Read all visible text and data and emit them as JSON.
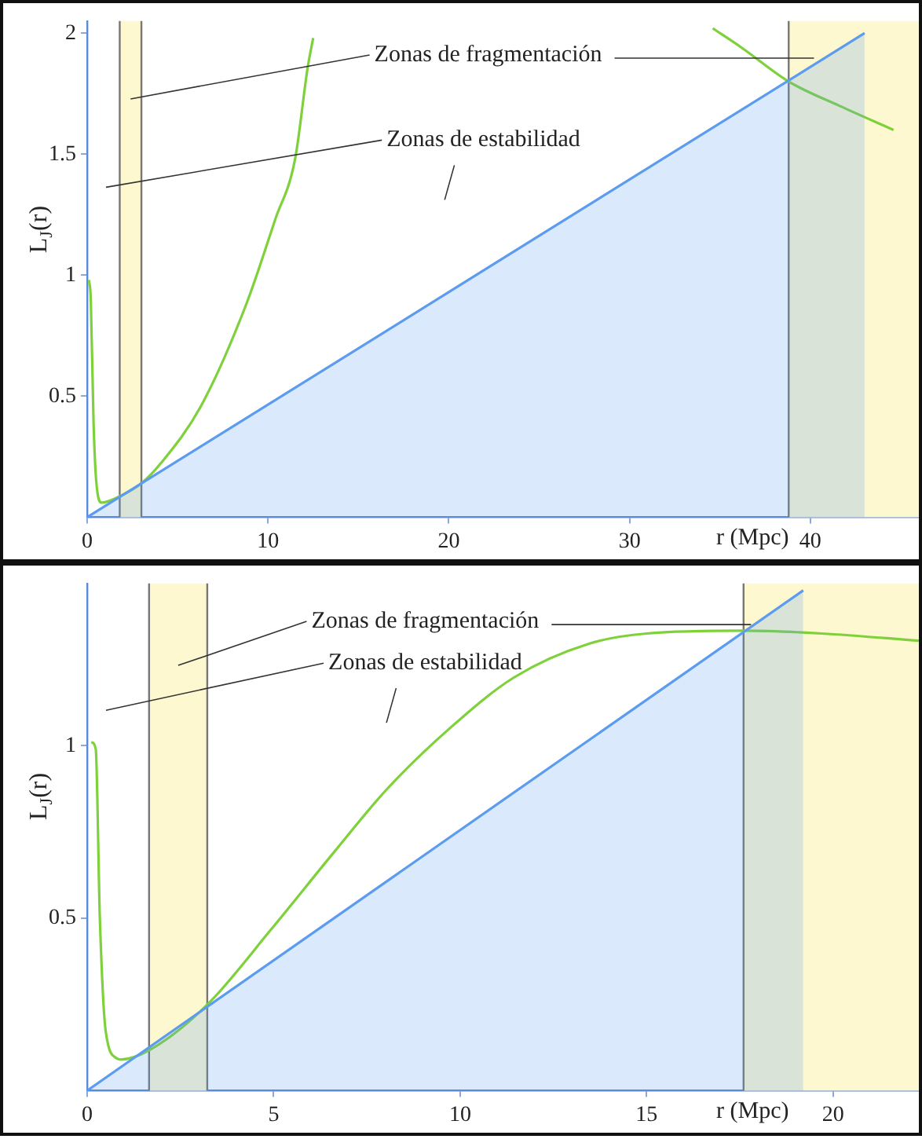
{
  "chart_data": [
    {
      "type": "line",
      "xlabel": "r (Mpc)",
      "ylabel": "L$_{J}$(r)",
      "xlim": [
        0,
        46
      ],
      "ylim": [
        0,
        2.05
      ],
      "xticks": [
        0,
        10,
        20,
        30,
        40
      ],
      "yticks": [
        0.5,
        1,
        1.5,
        2
      ],
      "grid": false,
      "legend": false,
      "series": [
        {
          "type": "area",
          "color": "#5b9bf0",
          "x": [
            0,
            43
          ],
          "values": [
            0,
            2.0
          ]
        },
        {
          "type": "line",
          "color": "#7fd13b",
          "x": [
            0.1,
            0.2,
            0.35,
            0.5,
            0.8,
            1.9,
            3.0,
            4.1,
            6.3,
            8.8,
            10.4,
            11.5,
            12.2,
            12.5,
            23,
            34.6,
            36.2,
            38.8,
            41.6,
            44.6
          ],
          "values": [
            0.98,
            0.9,
            0.4,
            0.15,
            0.06,
            0.09,
            0.14,
            0.225,
            0.46,
            0.88,
            1.23,
            1.48,
            1.86,
            1.98,
            null,
            2.02,
            1.94,
            1.8,
            1.7,
            1.6
          ]
        }
      ],
      "bands": [
        {
          "axis": "x",
          "from": 1.8,
          "to": 3.0,
          "color": "#fdf8d0"
        },
        {
          "axis": "x",
          "from": 38.8,
          "to": 46,
          "color": "#fdf8d0"
        }
      ],
      "annotations": [
        {
          "text": "Zonas de fragmentación",
          "x": 40.2,
          "y": 1.91
        },
        "Zonas de estabilidad"
      ]
    },
    {
      "type": "line",
      "xlabel": "r (Mpc)",
      "ylabel": "L$_{J}$(r)",
      "xlim": [
        0,
        22.3
      ],
      "ylim": [
        0,
        1.47
      ],
      "xticks": [
        0,
        5,
        10,
        15,
        20
      ],
      "yticks": [
        0.5,
        1
      ],
      "grid": false,
      "legend": false,
      "series": [
        {
          "type": "area",
          "color": "#5b9bf0",
          "x": [
            0,
            19.2
          ],
          "values": [
            0,
            1.45
          ]
        },
        {
          "type": "line",
          "color": "#7fd13b",
          "x": [
            0.11,
            0.23,
            0.34,
            0.5,
            0.8,
            0.9,
            1.66,
            3.2,
            4.93,
            6.64,
            8.03,
            9.74,
            11.45,
            13.47,
            15.0,
            17.6,
            19.7,
            22.3
          ],
          "values": [
            1.01,
            0.99,
            0.5,
            0.17,
            0.093,
            0.09,
            0.117,
            0.247,
            0.467,
            0.694,
            0.873,
            1.052,
            1.198,
            1.296,
            1.325,
            1.333,
            1.325,
            1.304
          ]
        }
      ],
      "bands": [
        {
          "axis": "x",
          "from": 1.66,
          "to": 3.22,
          "color": "#fdf8d0"
        },
        {
          "axis": "x",
          "from": 17.6,
          "to": 22.3,
          "color": "#fdf8d0"
        }
      ],
      "annotations": [
        {
          "text": "Zonas de fragmentación",
          "x": 17.8,
          "y": 1.36
        },
        "Zonas de estabilidad"
      ]
    }
  ]
}
